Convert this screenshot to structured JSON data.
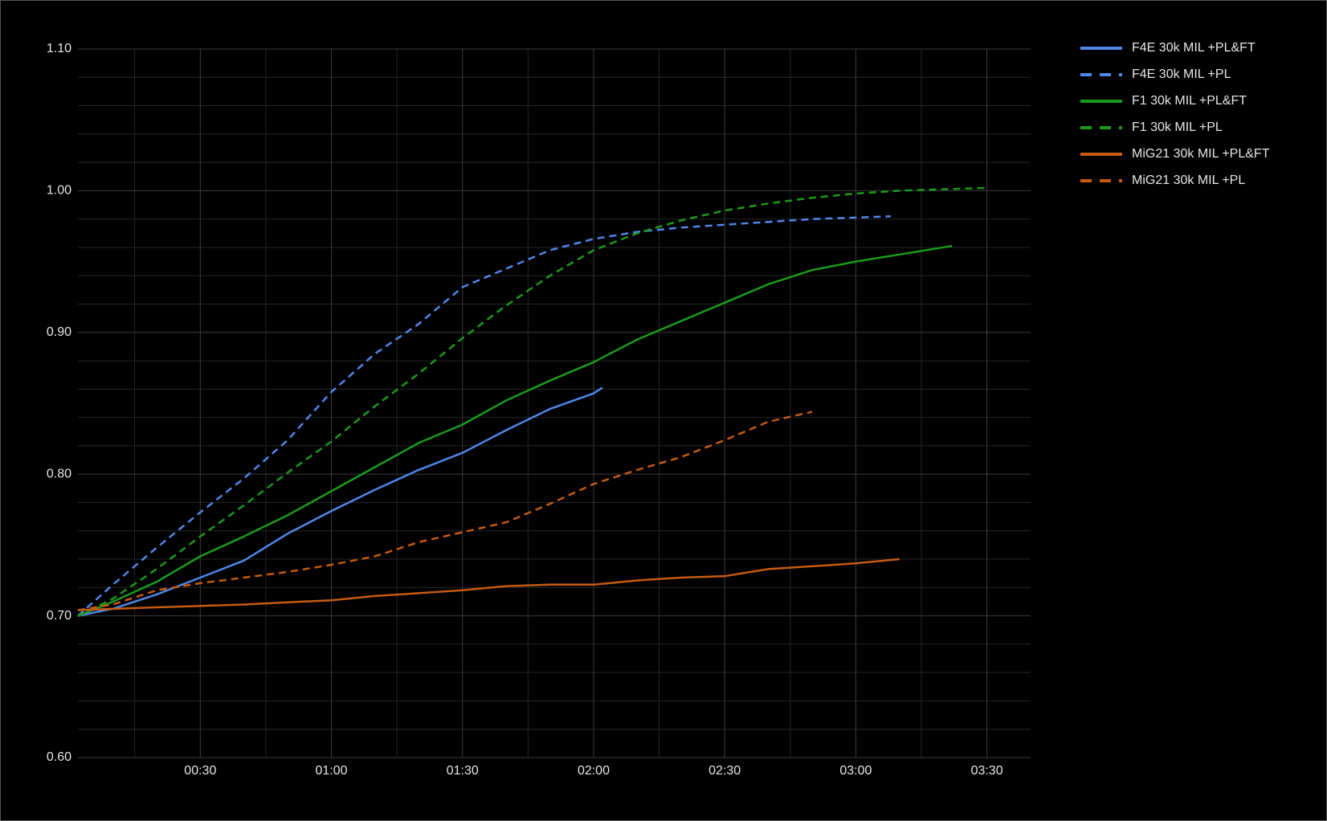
{
  "chart_data": {
    "type": "line",
    "xlim": [
      2,
      220
    ],
    "ylim": [
      0.6,
      1.1
    ],
    "xticks": [
      {
        "value": 30,
        "label": "00:30"
      },
      {
        "value": 60,
        "label": "01:00"
      },
      {
        "value": 90,
        "label": "01:30"
      },
      {
        "value": 120,
        "label": "02:00"
      },
      {
        "value": 150,
        "label": "02:30"
      },
      {
        "value": 180,
        "label": "03:00"
      },
      {
        "value": 210,
        "label": "03:30"
      }
    ],
    "yticks": [
      {
        "value": 0.6,
        "label": "0.60"
      },
      {
        "value": 0.7,
        "label": "0.70"
      },
      {
        "value": 0.8,
        "label": "0.80"
      },
      {
        "value": 0.9,
        "label": "0.90"
      },
      {
        "value": 1.0,
        "label": "1.00"
      },
      {
        "value": 1.1,
        "label": "1.10"
      }
    ],
    "x_minor_grid": [
      15,
      45,
      75,
      105,
      135,
      165,
      195
    ],
    "y_minor_grid": [
      0.62,
      0.64,
      0.66,
      0.68,
      0.72,
      0.74,
      0.76,
      0.78,
      0.82,
      0.84,
      0.86,
      0.88,
      0.92,
      0.94,
      0.96,
      0.98,
      1.02,
      1.04,
      1.06,
      1.08
    ],
    "grid": true,
    "legend": "right",
    "series": [
      {
        "name": "F4E 30k MIL +PL&FT",
        "color": "#4f86e8",
        "dashed": false,
        "x": [
          2,
          10,
          20,
          30,
          40,
          50,
          60,
          70,
          80,
          90,
          100,
          110,
          120,
          122
        ],
        "values": [
          0.7,
          0.705,
          0.715,
          0.727,
          0.739,
          0.758,
          0.774,
          0.789,
          0.803,
          0.815,
          0.831,
          0.846,
          0.857,
          0.861
        ]
      },
      {
        "name": "F4E 30k MIL +PL",
        "color": "#4f86e8",
        "dashed": true,
        "x": [
          2,
          10,
          20,
          30,
          40,
          50,
          60,
          70,
          80,
          90,
          100,
          110,
          120,
          130,
          140,
          150,
          160,
          170,
          180,
          188
        ],
        "values": [
          0.7,
          0.722,
          0.748,
          0.773,
          0.797,
          0.824,
          0.858,
          0.885,
          0.906,
          0.932,
          0.945,
          0.958,
          0.966,
          0.971,
          0.974,
          0.976,
          0.978,
          0.98,
          0.981,
          0.982
        ]
      },
      {
        "name": "F1 30k MIL +PL&FT",
        "color": "#1a9a1a",
        "dashed": false,
        "x": [
          2,
          10,
          20,
          30,
          40,
          50,
          60,
          70,
          80,
          90,
          100,
          110,
          120,
          130,
          140,
          150,
          160,
          170,
          180,
          190,
          202
        ],
        "values": [
          0.7,
          0.71,
          0.724,
          0.742,
          0.756,
          0.771,
          0.788,
          0.805,
          0.822,
          0.835,
          0.852,
          0.866,
          0.879,
          0.895,
          0.908,
          0.921,
          0.934,
          0.944,
          0.95,
          0.955,
          0.961
        ]
      },
      {
        "name": "F1 30k MIL +PL",
        "color": "#1a9a1a",
        "dashed": true,
        "x": [
          2,
          10,
          20,
          30,
          40,
          50,
          60,
          70,
          80,
          90,
          100,
          110,
          120,
          130,
          140,
          150,
          160,
          170,
          180,
          190,
          200,
          210
        ],
        "values": [
          0.7,
          0.712,
          0.733,
          0.756,
          0.778,
          0.801,
          0.823,
          0.848,
          0.871,
          0.896,
          0.919,
          0.94,
          0.958,
          0.97,
          0.979,
          0.986,
          0.991,
          0.995,
          0.998,
          1.0,
          1.001,
          1.002
        ]
      },
      {
        "name": "MiG21 30k MIL +PL&FT",
        "color": "#c55a11",
        "dashed": false,
        "x": [
          2,
          20,
          40,
          60,
          70,
          80,
          90,
          100,
          110,
          120,
          130,
          140,
          150,
          160,
          170,
          180,
          190
        ],
        "values": [
          0.704,
          0.706,
          0.708,
          0.711,
          0.714,
          0.716,
          0.718,
          0.721,
          0.722,
          0.722,
          0.725,
          0.727,
          0.728,
          0.733,
          0.735,
          0.737,
          0.74
        ]
      },
      {
        "name": "MiG21 30k MIL +PL",
        "color": "#c55a11",
        "dashed": true,
        "x": [
          2,
          10,
          20,
          30,
          40,
          50,
          60,
          70,
          80,
          90,
          100,
          110,
          120,
          130,
          140,
          150,
          160,
          170
        ],
        "values": [
          0.704,
          0.708,
          0.718,
          0.723,
          0.727,
          0.731,
          0.736,
          0.742,
          0.752,
          0.759,
          0.766,
          0.779,
          0.793,
          0.803,
          0.812,
          0.824,
          0.837,
          0.844
        ]
      }
    ]
  }
}
